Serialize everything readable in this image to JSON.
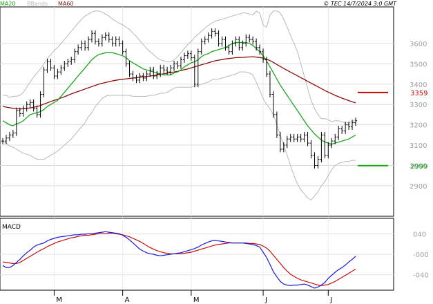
{
  "header": {
    "legend": [
      {
        "label": "MA20",
        "color": "#1aa51a"
      },
      {
        "label": "BBands",
        "color": "#b8b8b8"
      },
      {
        "label": "MA60",
        "color": "#8b0d0d"
      }
    ],
    "copyright": "© TEC 14/7/2024 3:0 GMT"
  },
  "markers": [
    {
      "label": "3359",
      "value": 3359,
      "color": "#cc0000"
    },
    {
      "label": "2999",
      "value": 2999,
      "color": "#1aa51a"
    }
  ],
  "macd_title": "MACD",
  "chart_data": [
    {
      "type": "line",
      "panel": "price",
      "ylim": [
        2750,
        3780
      ],
      "yticks": [
        2900,
        3000,
        3100,
        3200,
        3300,
        3400,
        3500,
        3600
      ],
      "grid": true,
      "x_count": 104,
      "month_ticks": [
        {
          "label": "M",
          "index": 15
        },
        {
          "label": "A",
          "index": 35
        },
        {
          "label": "M",
          "index": 55
        },
        {
          "label": "J",
          "index": 76
        },
        {
          "label": "J",
          "index": 95
        }
      ],
      "price": [
        3120,
        3135,
        3150,
        3160,
        3270,
        3255,
        3280,
        3300,
        3310,
        3280,
        3250,
        3350,
        3470,
        3510,
        3480,
        3440,
        3460,
        3480,
        3500,
        3510,
        3520,
        3560,
        3580,
        3600,
        3580,
        3620,
        3650,
        3610,
        3600,
        3630,
        3640,
        3620,
        3600,
        3620,
        3600,
        3560,
        3500,
        3450,
        3430,
        3420,
        3440,
        3430,
        3450,
        3470,
        3440,
        3450,
        3480,
        3470,
        3460,
        3480,
        3500,
        3490,
        3520,
        3540,
        3550,
        3530,
        3400,
        3560,
        3610,
        3620,
        3640,
        3660,
        3650,
        3600,
        3620,
        3580,
        3560,
        3600,
        3620,
        3580,
        3600,
        3630,
        3620,
        3610,
        3580,
        3560,
        3520,
        3450,
        3350,
        3250,
        3150,
        3080,
        3100,
        3130,
        3140,
        3130,
        3140,
        3130,
        3150,
        3110,
        3050,
        3000,
        3030,
        3150,
        3050,
        3100,
        3120,
        3140,
        3180,
        3170,
        3200,
        3190,
        3210,
        3220
      ],
      "ma20": [
        3220,
        3210,
        3200,
        3195,
        3205,
        3210,
        3220,
        3235,
        3250,
        3255,
        3260,
        3265,
        3275,
        3290,
        3300,
        3310,
        3320,
        3340,
        3360,
        3380,
        3400,
        3420,
        3440,
        3460,
        3480,
        3500,
        3520,
        3535,
        3545,
        3550,
        3555,
        3555,
        3555,
        3550,
        3545,
        3540,
        3530,
        3515,
        3505,
        3495,
        3485,
        3475,
        3470,
        3465,
        3460,
        3455,
        3450,
        3445,
        3445,
        3445,
        3455,
        3460,
        3470,
        3485,
        3495,
        3505,
        3510,
        3520,
        3535,
        3545,
        3550,
        3560,
        3565,
        3570,
        3575,
        3580,
        3590,
        3600,
        3605,
        3605,
        3605,
        3605,
        3600,
        3590,
        3575,
        3560,
        3540,
        3515,
        3485,
        3455,
        3425,
        3395,
        3370,
        3345,
        3320,
        3295,
        3270,
        3245,
        3220,
        3195,
        3175,
        3155,
        3140,
        3125,
        3115,
        3110,
        3105,
        3110,
        3115,
        3120,
        3125,
        3130,
        3140,
        3150
      ],
      "ma60": [
        3290,
        3287,
        3284,
        3281,
        3279,
        3278,
        3279,
        3280,
        3283,
        3286,
        3290,
        3295,
        3302,
        3308,
        3315,
        3320,
        3326,
        3332,
        3338,
        3345,
        3352,
        3358,
        3364,
        3370,
        3376,
        3382,
        3388,
        3394,
        3400,
        3404,
        3408,
        3412,
        3416,
        3419,
        3422,
        3424,
        3426,
        3428,
        3430,
        3432,
        3434,
        3436,
        3438,
        3440,
        3442,
        3445,
        3448,
        3451,
        3454,
        3457,
        3460,
        3463,
        3467,
        3471,
        3475,
        3480,
        3485,
        3490,
        3495,
        3500,
        3505,
        3510,
        3515,
        3518,
        3521,
        3524,
        3526,
        3528,
        3530,
        3531,
        3532,
        3533,
        3534,
        3535,
        3533,
        3531,
        3528,
        3523,
        3516,
        3507,
        3497,
        3487,
        3477,
        3468,
        3459,
        3450,
        3441,
        3432,
        3423,
        3414,
        3405,
        3396,
        3387,
        3378,
        3369,
        3361,
        3353,
        3345,
        3338,
        3331,
        3325,
        3319,
        3313,
        3308
      ],
      "bb_upper": [
        3345,
        3345,
        3335,
        3340,
        3340,
        3345,
        3360,
        3385,
        3410,
        3435,
        3455,
        3475,
        3500,
        3525,
        3545,
        3565,
        3580,
        3600,
        3620,
        3640,
        3660,
        3680,
        3700,
        3720,
        3735,
        3745,
        3755,
        3760,
        3760,
        3755,
        3745,
        3735,
        3720,
        3710,
        3700,
        3692,
        3680,
        3670,
        3650,
        3635,
        3615,
        3595,
        3575,
        3560,
        3545,
        3530,
        3520,
        3515,
        3510,
        3510,
        3520,
        3535,
        3555,
        3575,
        3595,
        3610,
        3630,
        3645,
        3660,
        3675,
        3690,
        3700,
        3710,
        3715,
        3720,
        3725,
        3730,
        3735,
        3740,
        3745,
        3750,
        3750,
        3745,
        3740,
        3760,
        3750,
        3690,
        3680,
        3740,
        3760,
        3760,
        3750,
        3720,
        3680,
        3640,
        3600,
        3560,
        3500,
        3440,
        3380,
        3320,
        3280,
        3250,
        3230,
        3230,
        3225,
        3215,
        3220,
        3220,
        3215,
        3210,
        3210,
        3215,
        3225
      ],
      "bb_lower": [
        3120,
        3110,
        3095,
        3090,
        3080,
        3070,
        3060,
        3055,
        3050,
        3040,
        3030,
        3030,
        3030,
        3040,
        3050,
        3060,
        3070,
        3085,
        3100,
        3115,
        3130,
        3150,
        3170,
        3190,
        3210,
        3240,
        3260,
        3290,
        3310,
        3330,
        3340,
        3345,
        3345,
        3345,
        3345,
        3345,
        3345,
        3345,
        3340,
        3340,
        3340,
        3340,
        3340,
        3345,
        3345,
        3350,
        3355,
        3355,
        3360,
        3370,
        3380,
        3385,
        3385,
        3385,
        3385,
        3385,
        3390,
        3395,
        3400,
        3405,
        3410,
        3420,
        3425,
        3425,
        3430,
        3435,
        3440,
        3445,
        3450,
        3460,
        3460,
        3460,
        3455,
        3445,
        3410,
        3370,
        3330,
        3300,
        3280,
        3250,
        3200,
        3150,
        3100,
        3050,
        3000,
        2950,
        2910,
        2880,
        2860,
        2840,
        2830,
        2850,
        2870,
        2900,
        2920,
        2950,
        2980,
        3000,
        3010,
        3015,
        3020,
        3020,
        3025,
        3025
      ]
    },
    {
      "type": "line",
      "panel": "macd",
      "ylim": [
        -70,
        70
      ],
      "yticks": [
        {
          "label": "040",
          "value": 40
        },
        {
          "label": "-000",
          "value": 0
        },
        {
          "label": "-040",
          "value": -40
        }
      ],
      "macd": [
        -22,
        -26,
        -26,
        -22,
        -16,
        -10,
        -3,
        3,
        8,
        14,
        18,
        20,
        22,
        26,
        29,
        31,
        33,
        34,
        35,
        36,
        37,
        38,
        38,
        39,
        39,
        40,
        40,
        41,
        42,
        43,
        44,
        43,
        42,
        41,
        40,
        37,
        33,
        28,
        22,
        16,
        10,
        6,
        3,
        1,
        0,
        -2,
        -3,
        -2,
        -1,
        0,
        1,
        2,
        3,
        5,
        7,
        9,
        11,
        14,
        18,
        21,
        24,
        26,
        27,
        26,
        25,
        24,
        23,
        22,
        22,
        22,
        22,
        21,
        20,
        19,
        17,
        14,
        4,
        -6,
        -20,
        -34,
        -44,
        -53,
        -58,
        -60,
        -61,
        -60,
        -60,
        -59,
        -58,
        -60,
        -63,
        -66,
        -64,
        -60,
        -55,
        -47,
        -41,
        -35,
        -30,
        -26,
        -21,
        -15,
        -10,
        -4
      ],
      "signal": [
        -15,
        -16,
        -17,
        -18,
        -18,
        -16,
        -12,
        -8,
        -4,
        0,
        4,
        8,
        11,
        15,
        18,
        21,
        24,
        26,
        28,
        30,
        32,
        33,
        35,
        36,
        37,
        37,
        38,
        39,
        40,
        40,
        40,
        41,
        41,
        40,
        39,
        38,
        36,
        34,
        31,
        28,
        25,
        21,
        17,
        13,
        10,
        7,
        5,
        3,
        2,
        1,
        1,
        1,
        1,
        2,
        3,
        4,
        6,
        8,
        10,
        12,
        14,
        16,
        18,
        19,
        20,
        21,
        22,
        22,
        22,
        22,
        22,
        22,
        21,
        21,
        20,
        19,
        16,
        12,
        6,
        -2,
        -10,
        -18,
        -26,
        -33,
        -39,
        -43,
        -47,
        -50,
        -52,
        -54,
        -56,
        -58,
        -60,
        -61,
        -60,
        -59,
        -56,
        -53,
        -49,
        -45,
        -41,
        -37,
        -33,
        -29
      ],
      "macd_color": "#1a1adb",
      "signal_color": "#c40d0d"
    }
  ]
}
